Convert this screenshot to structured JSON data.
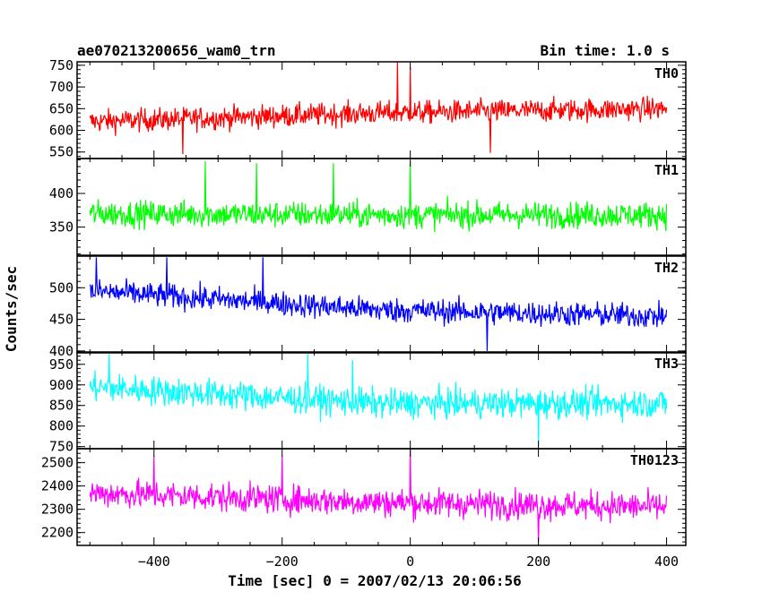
{
  "header": {
    "left_title": "ae070213200656_wam0_trn",
    "right_title": "Bin time: 1.0 s"
  },
  "axes": {
    "xlabel": "Time [sec] 0 = 2007/02/13 20:06:56",
    "ylabel": "Counts/sec"
  },
  "chart_data": {
    "type": "line",
    "title": "ae070213200656_wam0_trn",
    "subtitle": "Bin time: 1.0 s",
    "xlabel": "Time [sec] 0 = 2007/02/13 20:06:56",
    "ylabel": "Counts/sec",
    "xlim": [
      -520,
      430
    ],
    "x_range_data": [
      -500,
      400
    ],
    "x_ticks": [
      -400,
      -200,
      0,
      200,
      400
    ],
    "x_tick_labels": [
      "−400",
      "−200",
      "0",
      "200",
      "400"
    ],
    "grid": false,
    "panels": [
      {
        "name": "TH0",
        "color": "#ff0000",
        "ylim": [
          535,
          758
        ],
        "y_ticks": [
          550,
          600,
          650,
          700,
          750
        ],
        "mean_start": 620,
        "mean_mid": 640,
        "mean_end": 650,
        "noise_amplitude": 30,
        "spikes": [
          [
            -20,
            757
          ],
          [
            0,
            745
          ],
          [
            125,
            548
          ],
          [
            -355,
            545
          ]
        ]
      },
      {
        "name": "TH1",
        "color": "#00ff00",
        "ylim": [
          308,
          452
        ],
        "y_ticks": [
          350,
          400
        ],
        "mean_start": 370,
        "mean_mid": 368,
        "mean_end": 368,
        "noise_amplitude": 22,
        "spikes": [
          [
            -320,
            448
          ],
          [
            -240,
            445
          ],
          [
            0,
            447
          ],
          [
            -120,
            445
          ]
        ]
      },
      {
        "name": "TH2",
        "color": "#0000ff",
        "ylim": [
          397,
          550
        ],
        "y_ticks": [
          400,
          450,
          500
        ],
        "mean_start": 495,
        "mean_mid": 465,
        "mean_end": 455,
        "noise_amplitude": 22,
        "spikes": [
          [
            -490,
            548
          ],
          [
            -380,
            548
          ],
          [
            -230,
            548
          ],
          [
            120,
            400
          ]
        ]
      },
      {
        "name": "TH3",
        "color": "#00ffff",
        "ylim": [
          745,
          980
        ],
        "y_ticks": [
          750,
          800,
          850,
          900,
          950
        ],
        "mean_start": 895,
        "mean_mid": 855,
        "mean_end": 855,
        "noise_amplitude": 40,
        "spikes": [
          [
            -470,
            975
          ],
          [
            -160,
            975
          ],
          [
            -90,
            960
          ],
          [
            200,
            750
          ]
        ]
      },
      {
        "name": "TH0123",
        "color": "#ff00ff",
        "ylim": [
          2145,
          2560
        ],
        "y_ticks": [
          2200,
          2300,
          2400,
          2500
        ],
        "mean_start": 2370,
        "mean_mid": 2330,
        "mean_end": 2310,
        "noise_amplitude": 70,
        "spikes": [
          [
            0,
            2555
          ],
          [
            -400,
            2530
          ],
          [
            -200,
            2530
          ],
          [
            200,
            2160
          ]
        ]
      }
    ]
  }
}
